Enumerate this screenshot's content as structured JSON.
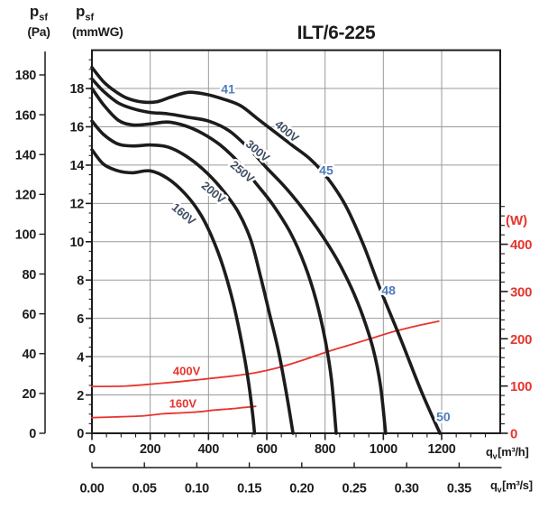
{
  "title": "ILT/6-225",
  "colors": {
    "curve_black": "#1c1c1c",
    "grid_gray": "#9a9a9a",
    "noise_blue": "#4d7cbe",
    "power_red": "#e8342e",
    "voltage_label_slate": "#3f4e63"
  },
  "axes": {
    "pa": {
      "sym": "p",
      "sym_sub": "sf",
      "unit": "(Pa)",
      "ticks": [
        180,
        160,
        140,
        120,
        100,
        80,
        60,
        40,
        20,
        0
      ]
    },
    "mmwg": {
      "sym": "p",
      "sym_sub": "sf",
      "unit": "(mmWG)",
      "ticks": [
        18,
        16,
        14,
        12,
        10,
        8,
        6,
        4,
        2,
        0
      ]
    },
    "watt": {
      "unit": "(W)",
      "ticks": [
        400,
        300,
        200,
        100,
        0
      ]
    },
    "qh": {
      "sym": "q",
      "sym_sub": "v",
      "bracket": "[m³/h]",
      "ticks": [
        0,
        200,
        400,
        600,
        800,
        1000,
        1200
      ]
    },
    "qs": {
      "sym": "q",
      "sym_sub": "v",
      "bracket": "[m³/s]",
      "ticks": [
        "0.00",
        "0.05",
        "0.10",
        "0.15",
        "0.20",
        "0.25",
        "0.30",
        "0.35"
      ]
    }
  },
  "chart_data": {
    "type": "line",
    "title": "ILT/6-225",
    "x_units": [
      "m³/h",
      "m³/s"
    ],
    "y_left_units": [
      "Pa",
      "mmWG"
    ],
    "y_right_unit": "W",
    "axis_ranges": {
      "q": [
        0,
        1400
      ],
      "q_gridstep": 200,
      "q_minor": 50,
      "q_labeled_max": 1200,
      "mmwg": [
        0,
        20
      ],
      "mmwg_gridstep": 2,
      "mmwg_minor": 0.5,
      "mmwg_labeled_max": 18,
      "pa": [
        0,
        198
      ],
      "pa_step": 20,
      "watt": [
        0,
        480
      ],
      "watt_step": 100,
      "watt_minor": 20,
      "watt_labeled_max": 400,
      "qs_step_s": 0.05,
      "qs_max_s": 0.35
    },
    "grid": "on",
    "pressure_curves": [
      {
        "name": "400V",
        "points": [
          [
            0,
            19.1
          ],
          [
            40,
            18.35
          ],
          [
            80,
            17.85
          ],
          [
            120,
            17.5
          ],
          [
            170,
            17.3
          ],
          [
            220,
            17.3
          ],
          [
            270,
            17.55
          ],
          [
            330,
            17.8
          ],
          [
            390,
            17.7
          ],
          [
            450,
            17.45
          ],
          [
            510,
            17.1
          ],
          [
            570,
            16.4
          ],
          [
            630,
            15.7
          ],
          [
            690,
            15.0
          ],
          [
            750,
            14.3
          ],
          [
            810,
            13.3
          ],
          [
            870,
            11.9
          ],
          [
            930,
            9.9
          ],
          [
            990,
            7.5
          ],
          [
            1060,
            4.9
          ],
          [
            1130,
            2.2
          ],
          [
            1194,
            0
          ]
        ]
      },
      {
        "name": "300V",
        "points": [
          [
            0,
            18.5
          ],
          [
            40,
            17.85
          ],
          [
            90,
            17.25
          ],
          [
            140,
            16.95
          ],
          [
            200,
            16.75
          ],
          [
            260,
            16.68
          ],
          [
            330,
            16.5
          ],
          [
            400,
            16.3
          ],
          [
            470,
            15.8
          ],
          [
            540,
            14.85
          ],
          [
            600,
            13.85
          ],
          [
            660,
            12.9
          ],
          [
            720,
            11.8
          ],
          [
            780,
            10.55
          ],
          [
            840,
            9.1
          ],
          [
            890,
            7.6
          ],
          [
            930,
            6.1
          ],
          [
            965,
            4.4
          ],
          [
            990,
            2.5
          ],
          [
            1008,
            0
          ]
        ]
      },
      {
        "name": "250V",
        "points": [
          [
            0,
            18.0
          ],
          [
            40,
            17.15
          ],
          [
            90,
            16.35
          ],
          [
            140,
            16.1
          ],
          [
            200,
            16.15
          ],
          [
            260,
            16.25
          ],
          [
            320,
            16.05
          ],
          [
            380,
            15.65
          ],
          [
            440,
            15.05
          ],
          [
            500,
            14.2
          ],
          [
            560,
            13.1
          ],
          [
            620,
            11.95
          ],
          [
            680,
            10.5
          ],
          [
            730,
            8.8
          ],
          [
            770,
            6.9
          ],
          [
            800,
            4.9
          ],
          [
            822,
            2.8
          ],
          [
            838,
            0
          ]
        ]
      },
      {
        "name": "200V",
        "points": [
          [
            0,
            16.3
          ],
          [
            40,
            15.6
          ],
          [
            90,
            15.1
          ],
          [
            140,
            15.0
          ],
          [
            200,
            15.05
          ],
          [
            260,
            14.95
          ],
          [
            320,
            14.5
          ],
          [
            380,
            13.8
          ],
          [
            440,
            12.85
          ],
          [
            500,
            11.6
          ],
          [
            545,
            10.1
          ],
          [
            580,
            8.1
          ],
          [
            610,
            6.2
          ],
          [
            640,
            4.3
          ],
          [
            667,
            2.1
          ],
          [
            690,
            0
          ]
        ]
      },
      {
        "name": "160V",
        "points": [
          [
            0,
            14.8
          ],
          [
            40,
            14.05
          ],
          [
            90,
            13.7
          ],
          [
            140,
            13.6
          ],
          [
            200,
            13.7
          ],
          [
            260,
            13.3
          ],
          [
            320,
            12.5
          ],
          [
            370,
            11.5
          ],
          [
            410,
            10.3
          ],
          [
            450,
            8.7
          ],
          [
            485,
            6.8
          ],
          [
            513,
            4.8
          ],
          [
            535,
            2.9
          ],
          [
            550,
            1.2
          ],
          [
            558,
            0
          ]
        ]
      }
    ],
    "power_curves": [
      {
        "name": "400V",
        "points": [
          [
            0,
            99
          ],
          [
            120,
            100
          ],
          [
            240,
            106
          ],
          [
            360,
            113
          ],
          [
            480,
            121
          ],
          [
            560,
            128
          ],
          [
            640,
            139
          ],
          [
            720,
            154
          ],
          [
            800,
            171
          ],
          [
            880,
            186
          ],
          [
            960,
            201
          ],
          [
            1040,
            216
          ],
          [
            1120,
            228
          ],
          [
            1190,
            237
          ]
        ]
      },
      {
        "name": "160V",
        "points": [
          [
            0,
            33
          ],
          [
            100,
            35
          ],
          [
            180,
            37
          ],
          [
            240,
            41
          ],
          [
            300,
            43
          ],
          [
            360,
            45
          ],
          [
            420,
            49
          ],
          [
            480,
            52
          ],
          [
            530,
            55
          ],
          [
            562,
            57
          ]
        ]
      }
    ],
    "curve_labels": [
      {
        "text": "400V",
        "q": 660,
        "p": 15.83,
        "rot": 40
      },
      {
        "text": "300V",
        "q": 560,
        "p": 14.8,
        "rot": 40
      },
      {
        "text": "250V",
        "q": 507,
        "p": 13.71,
        "rot": 40
      },
      {
        "text": "200V",
        "q": 408,
        "p": 12.63,
        "rot": 40
      },
      {
        "text": "160V",
        "q": 306,
        "p": 11.5,
        "rot": 40
      }
    ],
    "noise_labels": [
      {
        "text": "41",
        "q": 467,
        "p": 17.95
      },
      {
        "text": "45",
        "q": 804,
        "p": 13.71
      },
      {
        "text": "48",
        "q": 1018,
        "p": 7.45
      },
      {
        "text": "50",
        "q": 1206,
        "p": 0.85
      }
    ],
    "power_labels": [
      {
        "text": "400V",
        "q": 325,
        "w": 132
      },
      {
        "text": "160V",
        "q": 312,
        "w": 63
      }
    ]
  }
}
